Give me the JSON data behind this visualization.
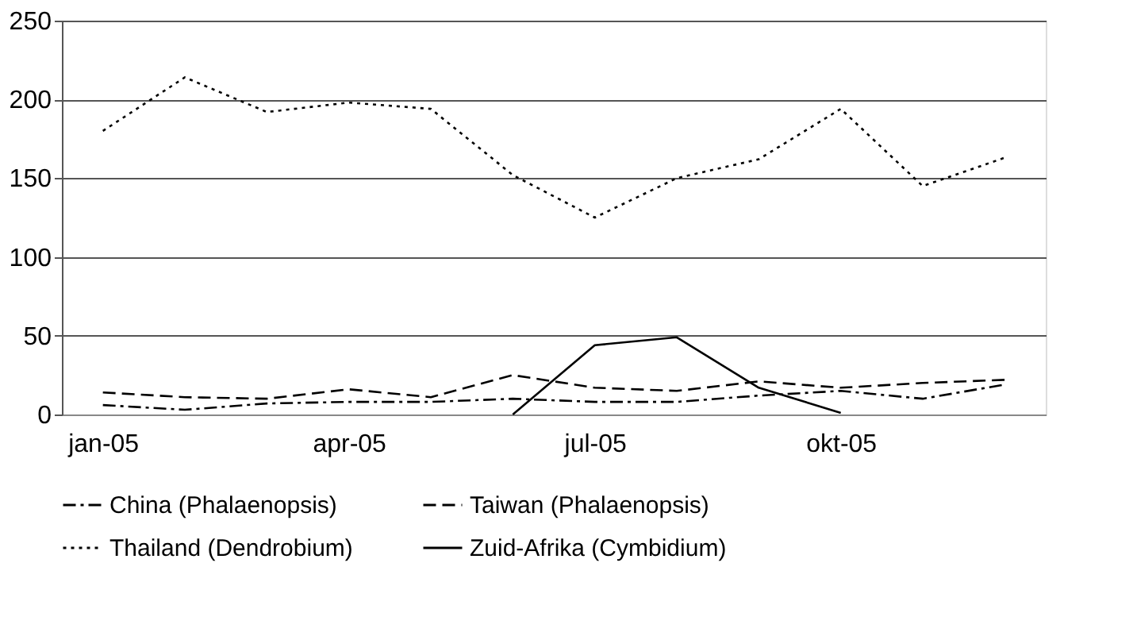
{
  "chart_data": {
    "type": "line",
    "categories": [
      "jan-05",
      null,
      null,
      "apr-05",
      null,
      null,
      "jul-05",
      null,
      null,
      "okt-05",
      null,
      null
    ],
    "series": [
      {
        "name": "China (Phalaenopsis)",
        "color": "#000000",
        "line_style": "dashdot",
        "values": [
          6,
          3,
          7,
          8,
          8,
          10,
          8,
          8,
          12,
          15,
          10,
          19
        ]
      },
      {
        "name": "Taiwan (Phalaenopsis)",
        "color": "#000000",
        "line_style": "dashed",
        "values": [
          14,
          11,
          10,
          16,
          11,
          25,
          17,
          15,
          21,
          17,
          20,
          22
        ]
      },
      {
        "name": "Thailand (Dendrobium)",
        "color": "#000000",
        "line_style": "dotted",
        "values": [
          180,
          214,
          192,
          198,
          194,
          152,
          125,
          150,
          162,
          194,
          145,
          163
        ]
      },
      {
        "name": "Zuid-Afrika (Cymbidium)",
        "color": "#000000",
        "line_style": "solid",
        "values": [
          null,
          null,
          null,
          null,
          null,
          0,
          44,
          49,
          17,
          1,
          null,
          null
        ]
      }
    ],
    "ylim": [
      0,
      250
    ],
    "yticks": [
      0,
      50,
      100,
      150,
      200,
      250
    ],
    "grid": "y",
    "legend": "bottom",
    "marker": "none"
  }
}
